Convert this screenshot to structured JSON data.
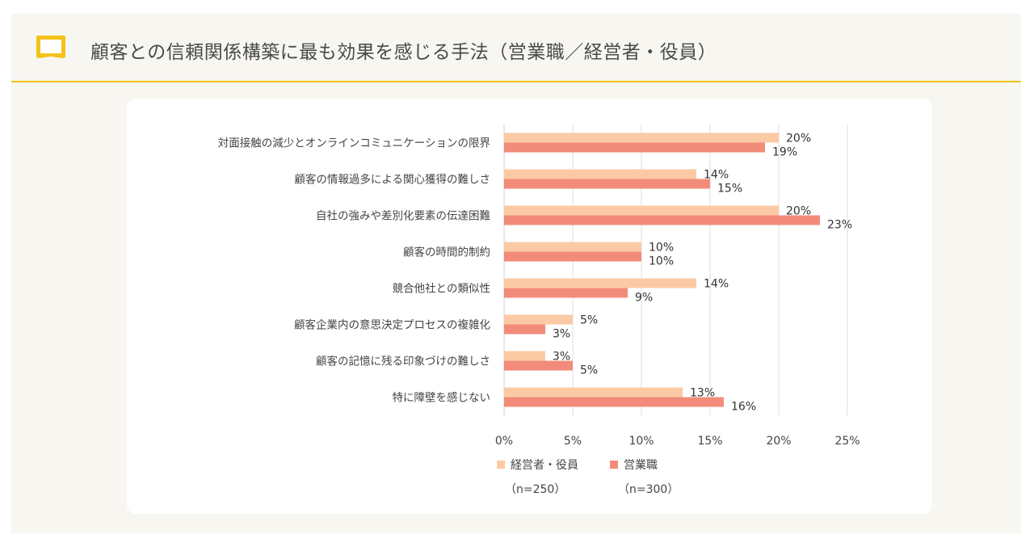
{
  "header": {
    "title": "顧客との信頼関係構築に最も効果を感じる手法（営業職／経営者・役員）",
    "icon": "book-icon",
    "accent_color": "#f3c21b"
  },
  "chart_data": {
    "type": "bar",
    "orientation": "horizontal",
    "categories": [
      "対面接触の減少とオンラインコミュニケーションの限界",
      "顧客の情報過多による関心獲得の難しさ",
      "自社の強みや差別化要素の伝達困難",
      "顧客の時間的制約",
      "競合他社との類似性",
      "顧客企業内の意思決定プロセスの複雑化",
      "顧客の記憶に残る印象づけの難しさ",
      "特に障壁を感じない"
    ],
    "series": [
      {
        "name": "経営者・役員",
        "values": [
          20,
          14,
          20,
          10,
          14,
          5,
          3,
          13
        ],
        "color": "#fbcaa5"
      },
      {
        "name": "営業職",
        "values": [
          19,
          15,
          23,
          10,
          9,
          3,
          5,
          16
        ],
        "color": "#f28b7a"
      }
    ],
    "legend_notes": [
      "（n=250）",
      "（n=300）"
    ],
    "xlim": [
      0,
      25
    ],
    "xticks": [
      "0%",
      "5%",
      "10%",
      "15%",
      "20%",
      "25%"
    ],
    "value_suffix": "%",
    "grid": true,
    "legend_position": "bottom"
  }
}
